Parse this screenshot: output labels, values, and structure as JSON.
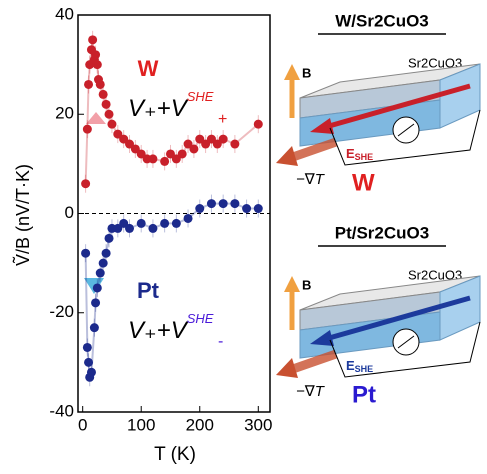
{
  "chart_data": {
    "type": "scatter",
    "x_label": "T (K)",
    "y_label": "Ṽ/B (nV/T·K)",
    "xlim": [
      -8,
      320
    ],
    "xticks": [
      0,
      100,
      200,
      300
    ],
    "ylim": [
      -40,
      40
    ],
    "yticks": [
      -40,
      -20,
      0,
      20,
      40
    ],
    "series": [
      {
        "name": "W",
        "color": "#c8202a",
        "x": [
          5,
          8,
          10,
          12,
          15,
          17,
          20,
          22,
          25,
          27,
          30,
          35,
          40,
          45,
          50,
          60,
          70,
          80,
          90,
          100,
          110,
          120,
          140,
          150,
          160,
          170,
          180,
          190,
          200,
          210,
          220,
          230,
          240,
          260,
          300
        ],
        "values": [
          6,
          17,
          26,
          30,
          33,
          35,
          31,
          32,
          30,
          27,
          26,
          24,
          22,
          20,
          18,
          16,
          15,
          14,
          13,
          12,
          11,
          11,
          10.5,
          12,
          11,
          12,
          14,
          13,
          15,
          14,
          15,
          14,
          15,
          14,
          18
        ]
      },
      {
        "name": "Pt",
        "color": "#1c2a8c",
        "x": [
          5,
          8,
          10,
          12,
          15,
          20,
          22,
          25,
          30,
          35,
          40,
          45,
          50,
          60,
          70,
          80,
          100,
          120,
          140,
          160,
          180,
          200,
          220,
          240,
          260,
          280,
          300
        ],
        "values": [
          -8,
          -27,
          -30,
          -33,
          -32,
          -23,
          -18,
          -15,
          -12,
          -10,
          -8,
          -5,
          -3,
          -3,
          -2,
          -3,
          -2,
          -3,
          -2,
          -2,
          -1,
          1,
          2,
          2,
          2,
          1,
          1
        ]
      }
    ],
    "annotations": [
      {
        "text": "V₊+V",
        "sub": "+",
        "sup": "SHE"
      },
      {
        "text": "V₊+V",
        "sub": "-",
        "sup": "SHE"
      }
    ]
  },
  "diagrams": [
    {
      "title": "W/Sr2CuO3",
      "substrate": "Sr2CuO3",
      "field": "B",
      "efield": "E",
      "efield_sub": "SHE",
      "gradient": "−∇T",
      "metal": "W"
    },
    {
      "title": "Pt/Sr2CuO3",
      "substrate": "Sr2CuO3",
      "field": "B",
      "efield": "E",
      "efield_sub": "SHE",
      "gradient": "−∇T",
      "metal": "Pt"
    }
  ]
}
